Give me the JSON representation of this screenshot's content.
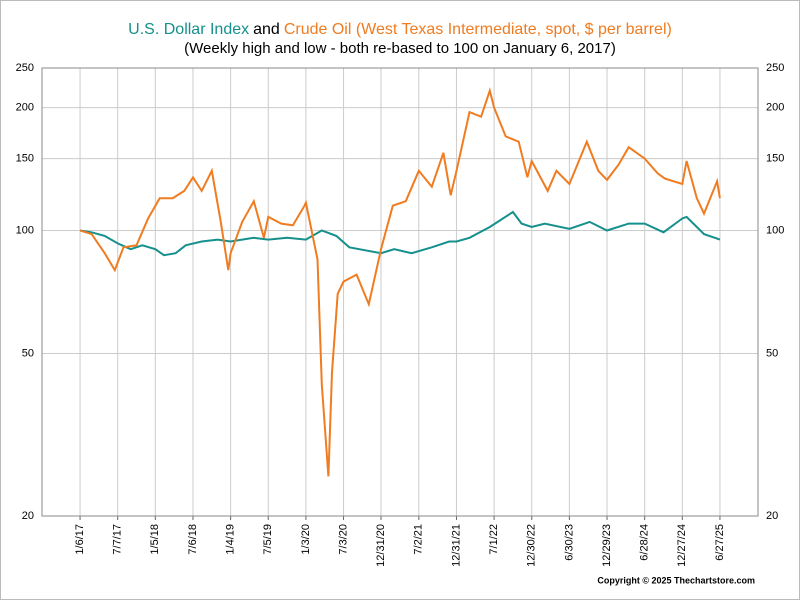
{
  "chart_data": {
    "type": "line",
    "title_connector": "and",
    "subtitle": "(Weekly high and low - both re-based to 100 on January 6, 2017)",
    "copyright": "Copyright © 2025 Thechartstore.com",
    "log_scale": true,
    "grid": true,
    "ylim": [
      20,
      250
    ],
    "yticks": [
      20,
      50,
      100,
      150,
      200,
      250
    ],
    "xlim": [
      "2016-07-06",
      "2025-12-28"
    ],
    "xticks": [
      {
        "value": "2017-01-06",
        "label": "1/6/17"
      },
      {
        "value": "2017-07-07",
        "label": "7/7/17"
      },
      {
        "value": "2018-01-05",
        "label": "1/5/18"
      },
      {
        "value": "2018-07-06",
        "label": "7/6/18"
      },
      {
        "value": "2019-01-04",
        "label": "1/4/19"
      },
      {
        "value": "2019-07-05",
        "label": "7/5/19"
      },
      {
        "value": "2020-01-03",
        "label": "1/3/20"
      },
      {
        "value": "2020-07-03",
        "label": "7/3/20"
      },
      {
        "value": "2020-12-31",
        "label": "12/31/20"
      },
      {
        "value": "2021-07-02",
        "label": "7/2/21"
      },
      {
        "value": "2021-12-31",
        "label": "12/31/21"
      },
      {
        "value": "2022-07-01",
        "label": "7/1/22"
      },
      {
        "value": "2022-12-30",
        "label": "12/30/22"
      },
      {
        "value": "2023-06-30",
        "label": "6/30/23"
      },
      {
        "value": "2023-12-29",
        "label": "12/29/23"
      },
      {
        "value": "2024-06-28",
        "label": "6/28/24"
      },
      {
        "value": "2024-12-27",
        "label": "12/27/24"
      },
      {
        "value": "2025-06-27",
        "label": "6/27/25"
      }
    ],
    "series": [
      {
        "name": "U.S. Dollar Index",
        "color": "#15908c",
        "x": [
          "2017-01-06",
          "2017-03-03",
          "2017-05-05",
          "2017-07-07",
          "2017-09-08",
          "2017-11-03",
          "2018-01-05",
          "2018-02-16",
          "2018-04-13",
          "2018-06-01",
          "2018-08-17",
          "2018-11-02",
          "2019-01-04",
          "2019-04-26",
          "2019-07-05",
          "2019-10-04",
          "2020-01-03",
          "2020-03-20",
          "2020-05-29",
          "2020-07-31",
          "2020-12-31",
          "2021-03-05",
          "2021-05-28",
          "2021-09-03",
          "2021-11-26",
          "2021-12-31",
          "2022-03-04",
          "2022-06-10",
          "2022-09-30",
          "2022-11-11",
          "2022-12-30",
          "2023-03-03",
          "2023-06-30",
          "2023-10-06",
          "2023-12-29",
          "2024-04-12",
          "2024-06-28",
          "2024-09-27",
          "2024-12-27",
          "2025-01-17",
          "2025-04-11",
          "2025-06-27"
        ],
        "values": [
          100,
          99,
          97,
          93,
          90,
          92,
          90,
          87,
          88,
          92,
          94,
          95,
          94,
          96,
          95,
          96,
          95,
          100,
          97,
          91,
          88,
          90,
          88,
          91,
          94,
          94,
          96,
          102,
          111,
          104,
          102,
          104,
          101,
          105,
          100,
          104,
          104,
          99,
          107,
          108,
          98,
          95
        ]
      },
      {
        "name": "Crude Oil (West Texas Intermediate, spot, $ per barrel)",
        "color": "#f07c21",
        "x": [
          "2017-01-06",
          "2017-03-03",
          "2017-05-05",
          "2017-06-23",
          "2017-08-04",
          "2017-10-06",
          "2017-12-01",
          "2018-01-26",
          "2018-03-30",
          "2018-05-25",
          "2018-07-06",
          "2018-08-17",
          "2018-10-05",
          "2018-11-16",
          "2018-12-24",
          "2019-01-04",
          "2019-03-01",
          "2019-04-26",
          "2019-06-14",
          "2019-07-05",
          "2019-09-06",
          "2019-11-01",
          "2019-12-27",
          "2020-01-03",
          "2020-02-28",
          "2020-03-20",
          "2020-04-21",
          "2020-05-08",
          "2020-06-05",
          "2020-07-03",
          "2020-09-04",
          "2020-11-02",
          "2020-12-31",
          "2021-02-26",
          "2021-04-30",
          "2021-07-02",
          "2021-09-03",
          "2021-10-29",
          "2021-12-03",
          "2021-12-31",
          "2022-03-04",
          "2022-04-29",
          "2022-06-10",
          "2022-07-01",
          "2022-08-26",
          "2022-10-28",
          "2022-12-09",
          "2022-12-30",
          "2023-03-17",
          "2023-04-28",
          "2023-06-30",
          "2023-09-22",
          "2023-11-17",
          "2023-12-29",
          "2024-02-23",
          "2024-04-12",
          "2024-06-28",
          "2024-08-30",
          "2024-10-04",
          "2024-12-27",
          "2025-01-17",
          "2025-03-07",
          "2025-04-11",
          "2025-06-13",
          "2025-06-27"
        ],
        "values": [
          100,
          98,
          88,
          80,
          91,
          92,
          107,
          120,
          120,
          125,
          135,
          125,
          140,
          106,
          80,
          88,
          105,
          118,
          96,
          108,
          104,
          103,
          115,
          117,
          85,
          42,
          25,
          45,
          70,
          75,
          78,
          66,
          90,
          115,
          118,
          140,
          128,
          155,
          122,
          140,
          195,
          190,
          220,
          200,
          170,
          165,
          135,
          148,
          125,
          140,
          130,
          165,
          140,
          133,
          145,
          160,
          150,
          138,
          134,
          130,
          148,
          120,
          110,
          132,
          120
        ]
      }
    ]
  }
}
